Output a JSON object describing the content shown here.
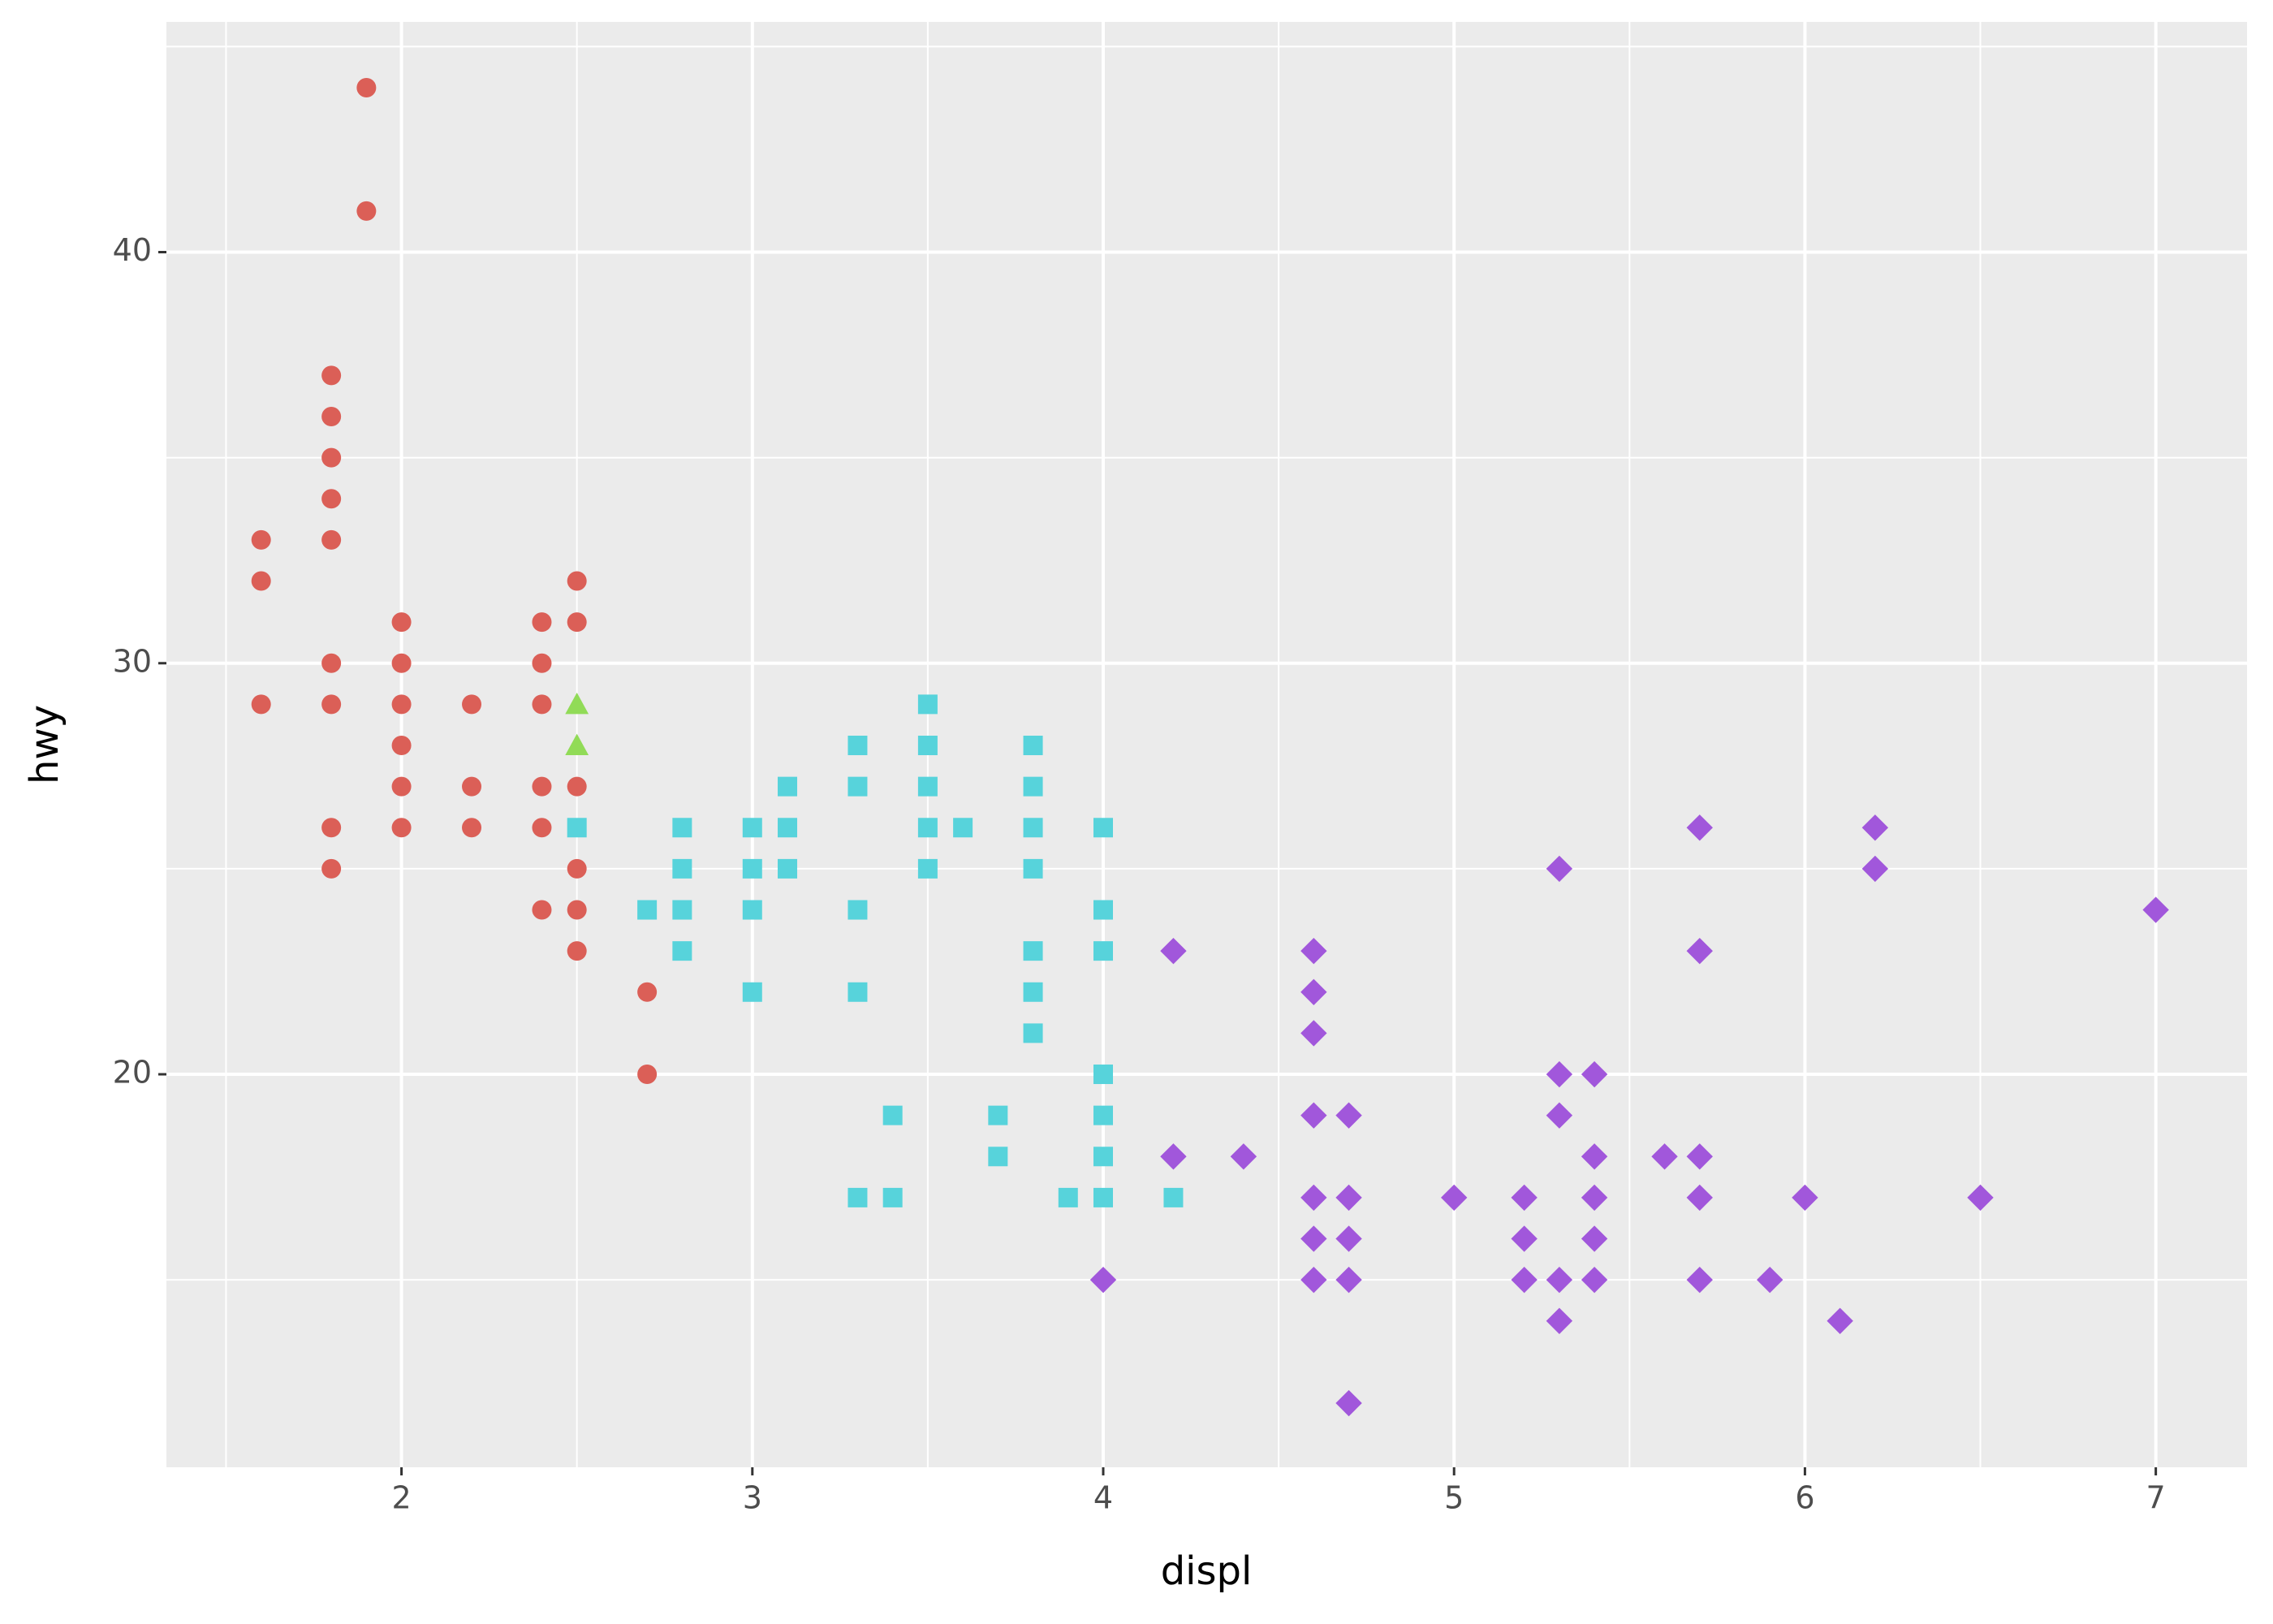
{
  "chart_data": {
    "type": "scatter",
    "xlabel": "displ",
    "ylabel": "hwy",
    "xlim": [
      1.33,
      7.26
    ],
    "ylim": [
      10.44,
      45.6
    ],
    "xticks": [
      2,
      3,
      4,
      5,
      6,
      7
    ],
    "yticks": [
      20,
      30,
      40
    ],
    "xminor": [
      1.5,
      2.5,
      3.5,
      4.5,
      5.5,
      6.5
    ],
    "yminor": [
      15,
      25,
      35,
      45
    ],
    "grid": true,
    "series": [
      {
        "color": "#db5f57",
        "marker": "circle",
        "x": [
          1.6,
          1.6,
          1.6,
          1.8,
          1.8,
          1.8,
          1.8,
          1.8,
          1.8,
          1.8,
          1.8,
          1.8,
          1.9,
          1.9,
          2.0,
          2.0,
          2.0,
          2.0,
          2.0,
          2.0,
          2.2,
          2.2,
          2.2,
          2.4,
          2.4,
          2.4,
          2.4,
          2.4,
          2.4,
          2.5,
          2.5,
          2.5,
          2.5,
          2.5,
          2.5,
          2.7,
          2.7
        ],
        "y": [
          33,
          32,
          29,
          37,
          36,
          35,
          34,
          33,
          30,
          29,
          26,
          25,
          44,
          41,
          31,
          30,
          29,
          28,
          27,
          26,
          29,
          27,
          26,
          31,
          30,
          29,
          27,
          26,
          24,
          32,
          31,
          27,
          25,
          24,
          23,
          22,
          20
        ]
      },
      {
        "color": "#91db57",
        "marker": "triangle",
        "x": [
          2.5,
          2.5
        ],
        "y": [
          29,
          28
        ]
      },
      {
        "color": "#57d3db",
        "marker": "square",
        "x": [
          2.5,
          2.7,
          2.8,
          2.8,
          2.8,
          2.8,
          3.0,
          3.0,
          3.0,
          3.0,
          3.1,
          3.1,
          3.1,
          3.3,
          3.3,
          3.3,
          3.3,
          3.3,
          3.4,
          3.4,
          3.5,
          3.5,
          3.5,
          3.5,
          3.5,
          3.6,
          3.7,
          3.7,
          3.8,
          3.8,
          3.8,
          3.8,
          3.8,
          3.8,
          3.8,
          3.9,
          4.0,
          4.0,
          4.0,
          4.0,
          4.0,
          4.0,
          4.0,
          4.2
        ],
        "y": [
          26,
          24,
          26,
          25,
          24,
          23,
          26,
          25,
          24,
          22,
          27,
          26,
          25,
          28,
          27,
          24,
          22,
          17,
          19,
          17,
          29,
          28,
          27,
          26,
          25,
          26,
          19,
          18,
          28,
          27,
          26,
          25,
          23,
          22,
          21,
          17,
          26,
          24,
          23,
          20,
          19,
          18,
          17,
          17
        ]
      },
      {
        "color": "#a157db",
        "marker": "diamond",
        "x": [
          4.0,
          4.2,
          4.2,
          4.4,
          4.6,
          4.6,
          4.6,
          4.6,
          4.6,
          4.6,
          4.6,
          4.7,
          4.7,
          4.7,
          4.7,
          4.7,
          5.0,
          5.2,
          5.2,
          5.2,
          5.3,
          5.3,
          5.3,
          5.3,
          5.3,
          5.4,
          5.4,
          5.4,
          5.4,
          5.4,
          5.6,
          5.7,
          5.7,
          5.7,
          5.7,
          5.7,
          5.9,
          6.0,
          6.1,
          6.2,
          6.2,
          6.5,
          7.0
        ],
        "y": [
          15,
          23,
          18,
          18,
          23,
          22,
          21,
          19,
          17,
          16,
          15,
          19,
          17,
          16,
          15,
          12,
          17,
          17,
          16,
          15,
          25,
          20,
          19,
          15,
          14,
          20,
          18,
          17,
          16,
          15,
          18,
          26,
          23,
          18,
          17,
          15,
          15,
          17,
          14,
          26,
          25,
          17,
          24
        ]
      }
    ]
  }
}
